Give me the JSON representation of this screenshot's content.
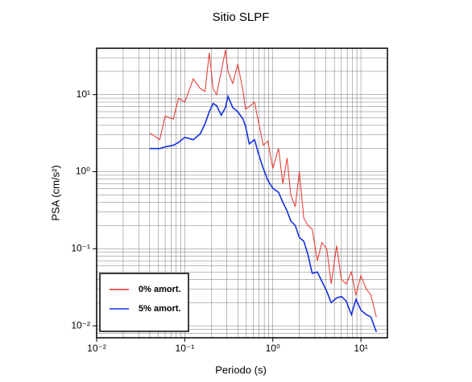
{
  "chart_data": {
    "type": "line",
    "title": "Sitio SLPF",
    "x_label": "Periodo (s)",
    "y_label": "PSA (cm/s²)",
    "log_x": true,
    "log_y": true,
    "grid": true,
    "legend": "lower left",
    "xlim": [
      0.01,
      20
    ],
    "ylim": [
      0.007,
      40
    ],
    "xticks": [
      {
        "value": 0.01,
        "label": "10⁻²"
      },
      {
        "value": 0.1,
        "label": "10⁻¹"
      },
      {
        "value": 1,
        "label": "10⁰"
      },
      {
        "value": 10,
        "label": "10¹"
      }
    ],
    "yticks": [
      {
        "value": 0.01,
        "label": "10⁻²"
      },
      {
        "value": 0.1,
        "label": "10⁻¹"
      },
      {
        "value": 1,
        "label": "10⁰"
      },
      {
        "value": 10,
        "label": "10¹"
      }
    ],
    "xminorticks": [
      0.02,
      0.03,
      0.04,
      0.05,
      0.06,
      0.07,
      0.08,
      0.09,
      0.2,
      0.3,
      0.4,
      0.5,
      0.6,
      0.7,
      0.8,
      0.9,
      2,
      3,
      4,
      5,
      6,
      7,
      8,
      9
    ],
    "yminorticks": [
      0.008,
      0.009,
      0.02,
      0.03,
      0.04,
      0.05,
      0.06,
      0.07,
      0.08,
      0.09,
      0.2,
      0.3,
      0.4,
      0.5,
      0.6,
      0.7,
      0.8,
      0.9,
      2,
      3,
      4,
      5,
      6,
      7,
      8,
      9,
      20,
      30
    ],
    "x": [
      0.04,
      0.052,
      0.06,
      0.074,
      0.085,
      0.1,
      0.125,
      0.15,
      0.17,
      0.19,
      0.21,
      0.23,
      0.26,
      0.29,
      0.31,
      0.35,
      0.4,
      0.46,
      0.49,
      0.54,
      0.62,
      0.7,
      0.78,
      0.88,
      1.0,
      1.16,
      1.3,
      1.45,
      1.6,
      1.8,
      2.0,
      2.25,
      2.5,
      2.8,
      3.2,
      3.6,
      4.1,
      4.6,
      5.3,
      6.0,
      6.8,
      7.8,
      8.8,
      10,
      11.5,
      13,
      15
    ],
    "series": [
      {
        "name": "0% amort.",
        "color": "#e8322a",
        "width": 1,
        "values": [
          3.2,
          2.6,
          5.3,
          4.8,
          9,
          8,
          16,
          12,
          11,
          35,
          12,
          10,
          20,
          38,
          20,
          14,
          25,
          11,
          6.5,
          7,
          8,
          4,
          2.2,
          2.5,
          1.1,
          2.0,
          0.7,
          1.5,
          0.5,
          0.35,
          1.0,
          0.25,
          0.2,
          0.18,
          0.07,
          0.12,
          0.1,
          0.035,
          0.11,
          0.04,
          0.035,
          0.05,
          0.025,
          0.045,
          0.03,
          0.025,
          0.013
        ]
      },
      {
        "name": "5% amort.",
        "color": "#1430e0",
        "width": 1.6,
        "values": [
          2.0,
          2.0,
          2.1,
          2.2,
          2.4,
          2.8,
          2.6,
          3.1,
          4.2,
          6.0,
          7.7,
          7.2,
          5.4,
          6.8,
          9.5,
          6.8,
          6.0,
          4.8,
          3.9,
          2.3,
          2.6,
          1.6,
          1.1,
          0.77,
          0.61,
          0.54,
          0.4,
          0.31,
          0.23,
          0.2,
          0.14,
          0.125,
          0.085,
          0.048,
          0.05,
          0.038,
          0.028,
          0.02,
          0.023,
          0.024,
          0.021,
          0.014,
          0.022,
          0.016,
          0.014,
          0.013,
          0.0083
        ]
      }
    ]
  }
}
